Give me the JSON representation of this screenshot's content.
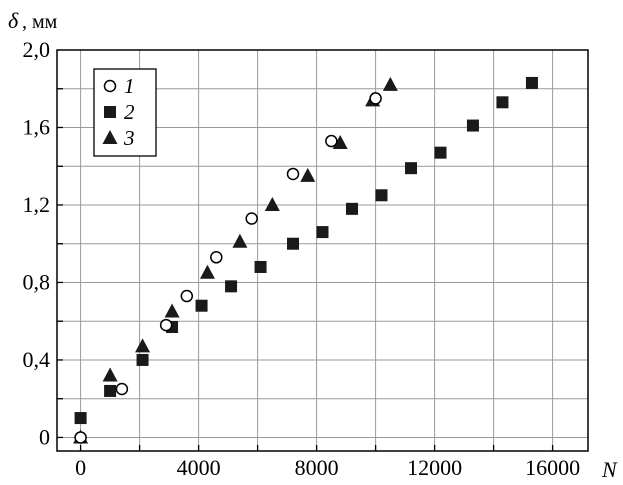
{
  "chart_data": {
    "type": "scatter",
    "xlabel": "N",
    "ylabel": "δ",
    "ylabel_unit": ", мм",
    "xlim": [
      -800,
      17200
    ],
    "ylim": [
      -0.07,
      2.0
    ],
    "x_ticks": [
      0,
      4000,
      8000,
      12000,
      16000
    ],
    "x_tick_labels": [
      "0",
      "4000",
      "8000",
      "12000",
      "16000"
    ],
    "y_ticks": [
      0,
      0.4,
      0.8,
      1.2,
      1.6,
      2.0
    ],
    "y_tick_labels": [
      "0",
      "0,4",
      "0,8",
      "1,2",
      "1,6",
      "2,0"
    ],
    "grid_x": [
      0,
      2000,
      4000,
      6000,
      8000,
      10000,
      12000,
      14000,
      16000
    ],
    "grid_y": [
      0,
      0.2,
      0.4,
      0.6,
      0.8,
      1.0,
      1.2,
      1.4,
      1.6,
      1.8
    ],
    "grid": true,
    "legend_position": "top-left",
    "series": [
      {
        "name": "1",
        "marker": "open-circle",
        "x": [
          0,
          1400,
          2900,
          3600,
          4600,
          5800,
          7200,
          8500,
          10000
        ],
        "y": [
          0.0,
          0.25,
          0.58,
          0.73,
          0.93,
          1.13,
          1.36,
          1.53,
          1.75
        ]
      },
      {
        "name": "2",
        "marker": "filled-square",
        "x": [
          0,
          1000,
          2100,
          3100,
          4100,
          5100,
          6100,
          7200,
          8200,
          9200,
          10200,
          11200,
          12200,
          13300,
          14300,
          15300
        ],
        "y": [
          0.1,
          0.24,
          0.4,
          0.57,
          0.68,
          0.78,
          0.88,
          1.0,
          1.06,
          1.18,
          1.25,
          1.39,
          1.47,
          1.61,
          1.73,
          1.83
        ]
      },
      {
        "name": "3",
        "marker": "filled-triangle",
        "x": [
          0,
          1000,
          2100,
          3100,
          4300,
          5400,
          6500,
          7700,
          8800,
          9900,
          10500
        ],
        "y": [
          0.0,
          0.32,
          0.47,
          0.65,
          0.85,
          1.01,
          1.2,
          1.35,
          1.52,
          1.74,
          1.82
        ]
      }
    ]
  }
}
